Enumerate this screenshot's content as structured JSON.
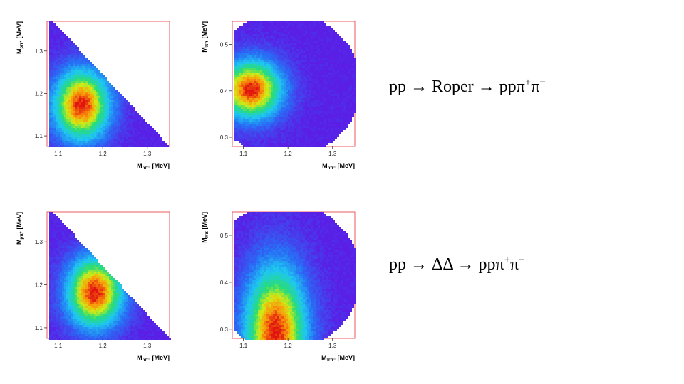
{
  "chart_data": [
    {
      "type": "heatmap",
      "id": "roper-m-ppi-plus",
      "xlabel": "M",
      "xlabel_sub": "pπ⁻",
      "xunit": "[MeV]",
      "ylabel": "M",
      "ylabel_sub": "pπ⁺",
      "yunit": "[MeV]",
      "xlim": [
        1.075,
        1.35
      ],
      "ylim": [
        1.075,
        1.37
      ],
      "xticks": [
        "1.1",
        "1.2",
        "1.3"
      ],
      "xtick_values": [
        1.1,
        1.2,
        1.3
      ],
      "yticks": [
        "1.1",
        "1.2",
        "1.3"
      ],
      "ytick_values": [
        1.1,
        1.2,
        1.3
      ],
      "peak": {
        "x": 1.15,
        "y": 1.175
      },
      "region": "triangular"
    },
    {
      "type": "heatmap",
      "id": "roper-m-pipi",
      "xlabel": "M",
      "xlabel_sub": "pπ⁻",
      "xunit": "[MeV]",
      "ylabel": "M",
      "ylabel_sub": "ππ",
      "yunit": "[MeV]",
      "xlim": [
        1.075,
        1.35
      ],
      "ylim": [
        0.28,
        0.55
      ],
      "xticks": [
        "1.1",
        "1.2",
        "1.3"
      ],
      "xtick_values": [
        1.1,
        1.2,
        1.3
      ],
      "yticks": [
        "0.3",
        "0.4",
        "0.5"
      ],
      "ytick_values": [
        0.3,
        0.4,
        0.5
      ],
      "peak": {
        "x": 1.115,
        "y": 0.405
      },
      "region": "rounded"
    },
    {
      "type": "heatmap",
      "id": "deltadelta-m-ppi-plus",
      "xlabel": "M",
      "xlabel_sub": "pπ⁻",
      "xunit": "[MeV]",
      "ylabel": "M",
      "ylabel_sub": "pπ⁺",
      "yunit": "[MeV]",
      "xlim": [
        1.075,
        1.35
      ],
      "ylim": [
        1.075,
        1.37
      ],
      "xticks": [
        "1.1",
        "1.2",
        "1.3"
      ],
      "xtick_values": [
        1.1,
        1.2,
        1.3
      ],
      "yticks": [
        "1.1",
        "1.2",
        "1.3"
      ],
      "ytick_values": [
        1.1,
        1.2,
        1.3
      ],
      "peak": {
        "x": 1.18,
        "y": 1.185
      },
      "region": "triangular"
    },
    {
      "type": "heatmap",
      "id": "deltadelta-m-pipi",
      "xlabel": "M",
      "xlabel_sub": "ππ⁻",
      "xunit": "[MeV]",
      "ylabel": "M",
      "ylabel_sub": "ππ",
      "yunit": "[MeV]",
      "xlim": [
        1.075,
        1.35
      ],
      "ylim": [
        0.28,
        0.55
      ],
      "xticks": [
        "1.1",
        "1.2",
        "1.3"
      ],
      "xtick_values": [
        1.1,
        1.2,
        1.3
      ],
      "yticks": [
        "0.3",
        "0.4",
        "0.5"
      ],
      "ytick_values": [
        0.3,
        0.4,
        0.5
      ],
      "peak": {
        "x": 1.17,
        "y": 0.295
      },
      "region": "rounded"
    }
  ],
  "reactions": [
    {
      "lhs": "pp",
      "arrow": "→",
      "mid": "Roper",
      "arrow2": "→",
      "rhs": "ppπ",
      "sup1": "+",
      "rhs2": "π",
      "sup2": "−"
    },
    {
      "lhs": "pp",
      "arrow": "→",
      "mid": "ΔΔ",
      "arrow2": "→",
      "rhs": "ppπ",
      "sup1": "+",
      "rhs2": "π",
      "sup2": "−"
    }
  ],
  "colors": {
    "frame": "#e85a5a",
    "low": "#5a1ee6",
    "mid": "#1ec8f0",
    "high": "#ffe000",
    "peak": "#e01010"
  }
}
